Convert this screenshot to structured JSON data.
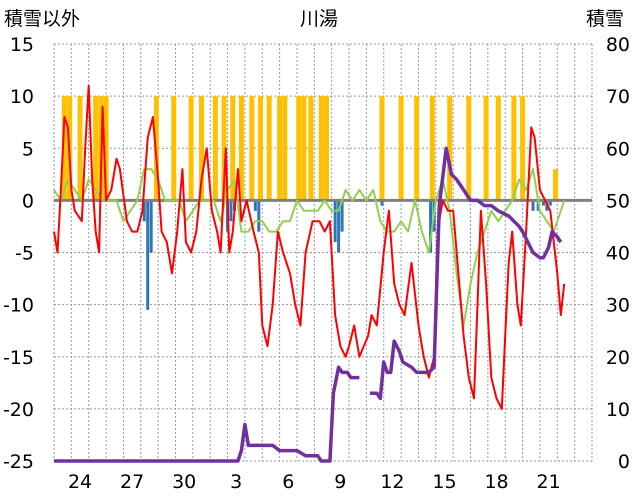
{
  "chart_data": {
    "type": "line",
    "title": "川湯",
    "y_left_label": "積雪以外",
    "y_right_label": "積雪",
    "y_left": {
      "min": -25,
      "max": 15,
      "ticks": [
        15,
        10,
        5,
        0,
        -5,
        -10,
        -15,
        -20,
        -25
      ]
    },
    "y_right": {
      "min": 0,
      "max": 80,
      "ticks": [
        80,
        70,
        60,
        50,
        40,
        30,
        20,
        10,
        0
      ]
    },
    "x": {
      "min": 0,
      "max": 31,
      "tick_positions": [
        1.5,
        4.5,
        7.5,
        10.5,
        13.5,
        16.5,
        19.5,
        22.5,
        25.5,
        28.5
      ],
      "tick_labels": [
        "24",
        "27",
        "30",
        "3",
        "6",
        "9",
        "12",
        "15",
        "18",
        "21"
      ]
    },
    "grid": true,
    "colors": {
      "sunshine": "#ffc000",
      "precipitation": "#2e75b6",
      "temp_max": "#ff0000",
      "temp_min": "#92d050",
      "snow_depth": "#7030a0",
      "grid": "#999999",
      "zero": "#808080"
    },
    "sunshine_bars": [
      [
        0.6,
        10
      ],
      [
        0.9,
        10
      ],
      [
        1.5,
        10
      ],
      [
        2.4,
        10
      ],
      [
        2.7,
        10
      ],
      [
        3.0,
        10
      ],
      [
        5.9,
        10
      ],
      [
        6.9,
        10
      ],
      [
        7.9,
        10
      ],
      [
        8.5,
        10
      ],
      [
        9.3,
        10
      ],
      [
        9.8,
        10
      ],
      [
        10.3,
        10
      ],
      [
        10.8,
        10
      ],
      [
        11.4,
        10
      ],
      [
        11.9,
        10
      ],
      [
        12.4,
        10
      ],
      [
        13.0,
        10
      ],
      [
        13.3,
        10
      ],
      [
        14.1,
        10
      ],
      [
        14.4,
        10
      ],
      [
        14.8,
        10
      ],
      [
        15.4,
        10
      ],
      [
        15.7,
        10
      ],
      [
        18.9,
        10
      ],
      [
        20.0,
        10
      ],
      [
        20.9,
        10
      ],
      [
        21.8,
        10
      ],
      [
        22.8,
        10
      ],
      [
        23.9,
        10
      ],
      [
        24.9,
        10
      ],
      [
        25.6,
        10
      ],
      [
        26.5,
        10
      ],
      [
        27.0,
        10
      ],
      [
        28.9,
        3
      ]
    ],
    "precipitation_bars": [
      [
        5.2,
        -2
      ],
      [
        5.4,
        -10.5
      ],
      [
        5.6,
        -5
      ],
      [
        10.0,
        -3
      ],
      [
        10.2,
        -2
      ],
      [
        10.4,
        -1
      ],
      [
        11.6,
        -1
      ],
      [
        11.8,
        -3
      ],
      [
        16.2,
        -4
      ],
      [
        16.4,
        -5
      ],
      [
        16.6,
        -3
      ],
      [
        18.9,
        -0.5
      ],
      [
        21.7,
        -5
      ],
      [
        21.9,
        -3
      ],
      [
        27.6,
        -1
      ],
      [
        27.9,
        -1
      ],
      [
        28.2,
        -0.5
      ],
      [
        28.4,
        -1
      ],
      [
        28.6,
        -0.5
      ]
    ],
    "temp_max": [
      [
        0,
        -3
      ],
      [
        0.2,
        -5
      ],
      [
        0.4,
        1
      ],
      [
        0.6,
        8
      ],
      [
        0.8,
        7
      ],
      [
        1.0,
        1
      ],
      [
        1.2,
        -1
      ],
      [
        1.6,
        -2
      ],
      [
        1.8,
        5
      ],
      [
        2.0,
        11
      ],
      [
        2.2,
        2
      ],
      [
        2.4,
        -3
      ],
      [
        2.6,
        -5
      ],
      [
        2.8,
        9
      ],
      [
        3.0,
        0
      ],
      [
        3.3,
        1
      ],
      [
        3.6,
        4
      ],
      [
        3.8,
        3
      ],
      [
        4.2,
        -2
      ],
      [
        4.5,
        -3
      ],
      [
        4.8,
        -3
      ],
      [
        5.1,
        -1
      ],
      [
        5.4,
        6
      ],
      [
        5.7,
        8
      ],
      [
        6.0,
        2
      ],
      [
        6.2,
        -3
      ],
      [
        6.5,
        -4
      ],
      [
        6.8,
        -7
      ],
      [
        7.1,
        -3
      ],
      [
        7.4,
        3
      ],
      [
        7.6,
        -4
      ],
      [
        7.9,
        -5
      ],
      [
        8.2,
        -3
      ],
      [
        8.5,
        2
      ],
      [
        8.8,
        5
      ],
      [
        9.1,
        -1
      ],
      [
        9.4,
        -3
      ],
      [
        9.6,
        -5
      ],
      [
        9.9,
        5
      ],
      [
        10.1,
        -5
      ],
      [
        10.3,
        -3
      ],
      [
        10.6,
        3
      ],
      [
        10.8,
        -2
      ],
      [
        11.1,
        0
      ],
      [
        11.5,
        -3
      ],
      [
        11.8,
        -5
      ],
      [
        12.0,
        -12
      ],
      [
        12.3,
        -14
      ],
      [
        12.6,
        -10
      ],
      [
        12.9,
        -3
      ],
      [
        13.2,
        -5
      ],
      [
        13.6,
        -7
      ],
      [
        13.9,
        -10
      ],
      [
        14.2,
        -12
      ],
      [
        14.5,
        -5
      ],
      [
        14.9,
        -2
      ],
      [
        15.3,
        -2
      ],
      [
        15.6,
        -3
      ],
      [
        15.9,
        -2
      ],
      [
        16.2,
        -11
      ],
      [
        16.5,
        -14
      ],
      [
        16.8,
        -15
      ],
      [
        17.0,
        -14
      ],
      [
        17.3,
        -12
      ],
      [
        17.6,
        -15
      ],
      [
        18.1,
        -13
      ],
      [
        18.3,
        -11
      ],
      [
        18.6,
        -12
      ],
      [
        19.0,
        -5
      ],
      [
        19.3,
        -1
      ],
      [
        19.6,
        -8
      ],
      [
        19.9,
        -10
      ],
      [
        20.2,
        -11
      ],
      [
        20.6,
        -6
      ],
      [
        21.0,
        -12
      ],
      [
        21.3,
        -15
      ],
      [
        21.6,
        -17
      ],
      [
        21.9,
        -15
      ],
      [
        22.1,
        -3
      ],
      [
        22.4,
        0
      ],
      [
        22.7,
        -1
      ],
      [
        23.0,
        -1
      ],
      [
        23.3,
        -7
      ],
      [
        23.6,
        -13
      ],
      [
        23.9,
        -17
      ],
      [
        24.2,
        -19
      ],
      [
        24.4,
        -10
      ],
      [
        24.6,
        -1
      ],
      [
        24.9,
        -8
      ],
      [
        25.2,
        -17
      ],
      [
        25.5,
        -19
      ],
      [
        25.8,
        -20
      ],
      [
        26.0,
        -13
      ],
      [
        26.2,
        -6
      ],
      [
        26.4,
        -3
      ],
      [
        26.7,
        -10
      ],
      [
        26.9,
        -12
      ],
      [
        27.2,
        -3
      ],
      [
        27.5,
        7
      ],
      [
        27.7,
        6
      ],
      [
        28.0,
        1
      ],
      [
        28.3,
        0
      ],
      [
        28.6,
        -1
      ],
      [
        28.8,
        -4
      ],
      [
        29.0,
        -7
      ],
      [
        29.2,
        -11
      ],
      [
        29.4,
        -8
      ]
    ],
    "temp_min": [
      [
        0,
        1
      ],
      [
        0.4,
        0
      ],
      [
        0.8,
        2
      ],
      [
        1.2,
        1
      ],
      [
        1.6,
        0
      ],
      [
        2.0,
        2
      ],
      [
        2.4,
        1
      ],
      [
        2.8,
        0
      ],
      [
        3.2,
        0
      ],
      [
        3.6,
        0
      ],
      [
        4.0,
        -2
      ],
      [
        4.4,
        -1
      ],
      [
        4.8,
        0
      ],
      [
        5.2,
        3
      ],
      [
        5.6,
        3
      ],
      [
        6.0,
        2
      ],
      [
        6.4,
        0
      ],
      [
        6.8,
        0
      ],
      [
        7.2,
        0
      ],
      [
        7.6,
        -2
      ],
      [
        8.0,
        -1
      ],
      [
        8.4,
        0
      ],
      [
        8.8,
        0
      ],
      [
        9.2,
        0
      ],
      [
        9.6,
        -2
      ],
      [
        10.0,
        1
      ],
      [
        10.4,
        2
      ],
      [
        10.8,
        -3
      ],
      [
        11.2,
        -3
      ],
      [
        11.6,
        -2
      ],
      [
        12.0,
        -2
      ],
      [
        12.4,
        -3
      ],
      [
        12.8,
        -3
      ],
      [
        13.2,
        -2
      ],
      [
        13.6,
        -2
      ],
      [
        14.0,
        0
      ],
      [
        14.4,
        -1
      ],
      [
        14.8,
        -1
      ],
      [
        15.2,
        -1
      ],
      [
        15.6,
        0
      ],
      [
        16.0,
        -1
      ],
      [
        16.4,
        -1
      ],
      [
        16.8,
        1
      ],
      [
        17.2,
        0
      ],
      [
        17.6,
        1
      ],
      [
        18.0,
        0
      ],
      [
        18.4,
        1
      ],
      [
        18.8,
        -2
      ],
      [
        19.2,
        -3
      ],
      [
        19.6,
        -3
      ],
      [
        20.0,
        -2
      ],
      [
        20.4,
        -3
      ],
      [
        20.8,
        0
      ],
      [
        21.2,
        -3
      ],
      [
        21.6,
        -5
      ],
      [
        22.0,
        0
      ],
      [
        22.4,
        2
      ],
      [
        22.8,
        -1
      ],
      [
        23.2,
        -7
      ],
      [
        23.6,
        -12
      ],
      [
        24.0,
        -8
      ],
      [
        24.4,
        -5
      ],
      [
        24.8,
        -3
      ],
      [
        25.2,
        -1
      ],
      [
        25.6,
        -2
      ],
      [
        26.0,
        -1
      ],
      [
        26.4,
        0
      ],
      [
        26.8,
        2
      ],
      [
        27.2,
        1
      ],
      [
        27.6,
        3
      ],
      [
        28.0,
        -1
      ],
      [
        28.4,
        -2
      ],
      [
        28.8,
        -3
      ],
      [
        29.2,
        -1
      ],
      [
        29.4,
        0
      ]
    ],
    "snow_depth": [
      [
        0,
        0
      ],
      [
        10.6,
        0
      ],
      [
        10.8,
        2
      ],
      [
        11.0,
        7
      ],
      [
        11.2,
        3
      ],
      [
        11.6,
        3
      ],
      [
        12.6,
        3
      ],
      [
        13.0,
        2
      ],
      [
        14.0,
        2
      ],
      [
        14.5,
        1
      ],
      [
        15.2,
        1
      ],
      [
        15.4,
        0
      ],
      [
        15.9,
        0
      ],
      [
        16.1,
        13
      ],
      [
        16.4,
        18
      ],
      [
        16.6,
        17
      ],
      [
        16.9,
        17
      ],
      [
        17.1,
        16
      ],
      [
        17.3,
        16
      ],
      [
        17.6,
        16
      ],
      [
        17.7,
        null
      ],
      [
        18.2,
        13
      ],
      [
        18.6,
        13
      ],
      [
        18.8,
        12
      ],
      [
        19.0,
        19
      ],
      [
        19.2,
        17
      ],
      [
        19.4,
        17
      ],
      [
        19.6,
        23
      ],
      [
        19.9,
        21
      ],
      [
        20.1,
        19
      ],
      [
        20.6,
        18
      ],
      [
        20.9,
        17
      ],
      [
        21.4,
        17
      ],
      [
        21.6,
        17
      ],
      [
        21.9,
        18
      ],
      [
        22.2,
        49
      ],
      [
        22.6,
        60
      ],
      [
        22.9,
        55
      ],
      [
        23.2,
        54
      ],
      [
        23.6,
        52
      ],
      [
        24.0,
        50
      ],
      [
        24.4,
        50
      ],
      [
        24.8,
        49
      ],
      [
        25.2,
        49
      ],
      [
        25.6,
        48
      ],
      [
        26.2,
        47
      ],
      [
        26.8,
        45
      ],
      [
        27.0,
        44
      ],
      [
        27.6,
        40
      ],
      [
        28.0,
        39
      ],
      [
        28.2,
        39
      ],
      [
        28.5,
        41
      ],
      [
        28.7,
        44
      ],
      [
        29.0,
        43
      ],
      [
        29.2,
        42
      ]
    ]
  }
}
